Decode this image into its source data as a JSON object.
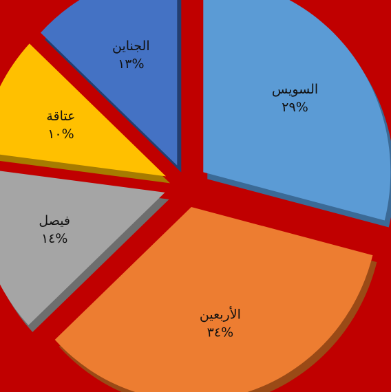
{
  "chart_data": {
    "type": "pie",
    "style": "exploded-3d",
    "background_color": "#c00000",
    "slices": [
      {
        "label": "السويس",
        "value": 29,
        "display": "٢٩%",
        "color": "#5b9bd5",
        "side_color": "#3b6a96"
      },
      {
        "label": "الأربعين",
        "value": 34,
        "display": "٣٤%",
        "color": "#ed7d31",
        "side_color": "#9a4a16"
      },
      {
        "label": "فيصل",
        "value": 14,
        "display": "١٤%",
        "color": "#a5a5a5",
        "side_color": "#6e6e6e"
      },
      {
        "label": "عتاقة",
        "value": 10,
        "display": "١٠%",
        "color": "#ffc000",
        "side_color": "#a67c00"
      },
      {
        "label": "الجناين",
        "value": 13,
        "display": "١٣%",
        "color": "#4472c4",
        "side_color": "#233e70"
      }
    ]
  }
}
